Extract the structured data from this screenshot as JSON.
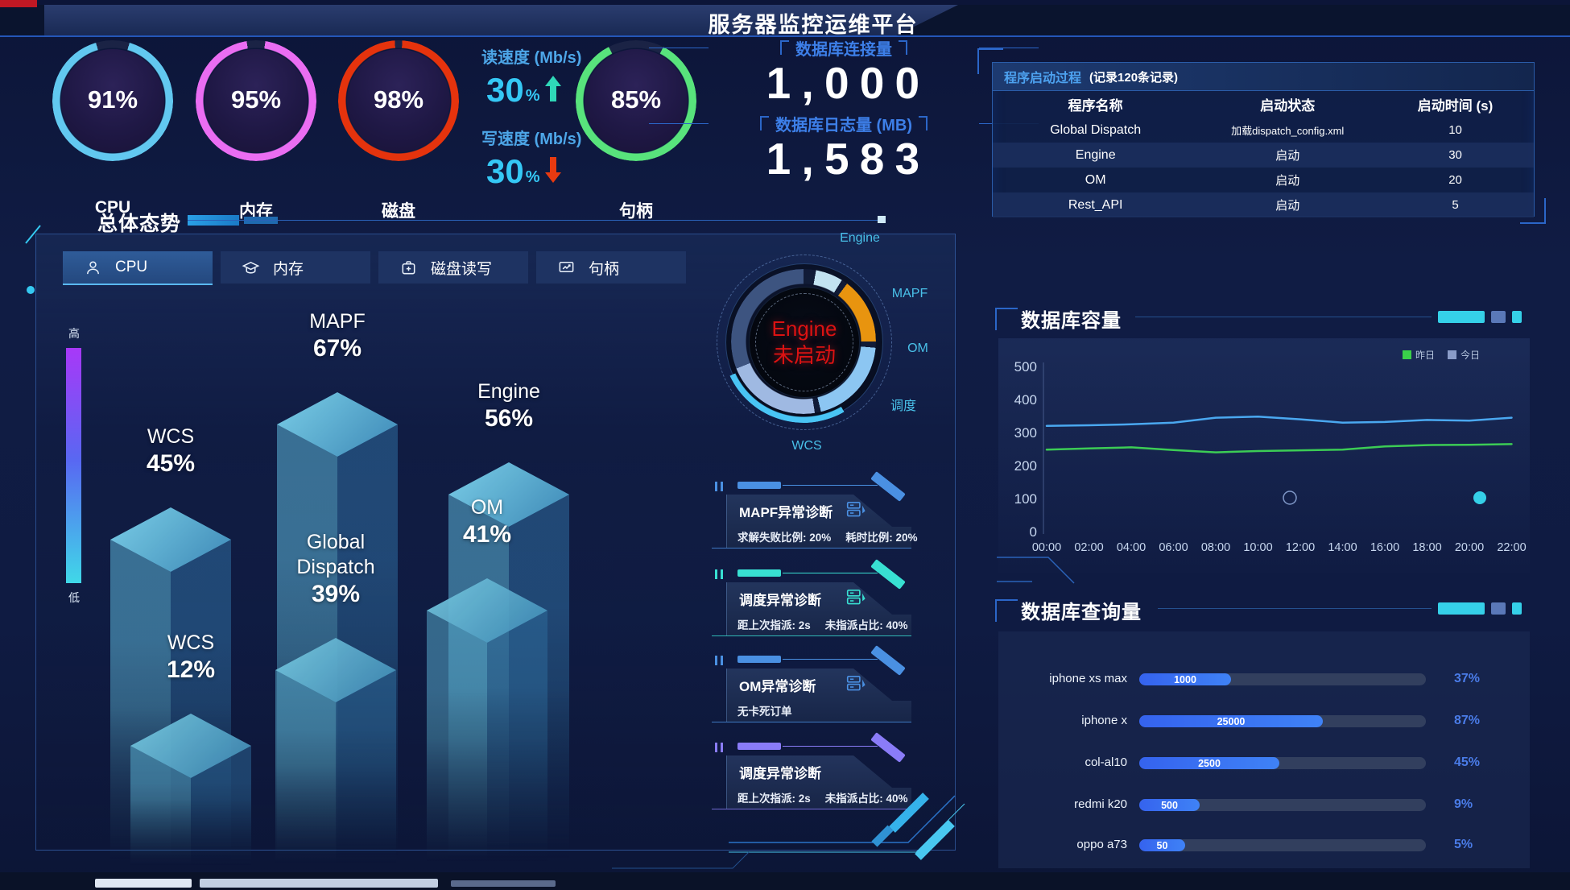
{
  "header": {
    "title": "服务器监控运维平台"
  },
  "gauges": [
    {
      "label": "CPU",
      "value": "91%",
      "pct": 91,
      "color": "#62c8f0"
    },
    {
      "label": "内存",
      "value": "95%",
      "pct": 95,
      "color": "#ea6df2"
    },
    {
      "label": "磁盘",
      "value": "98%",
      "pct": 98,
      "color": "#e5330d"
    },
    {
      "label": "句柄",
      "value": "85%",
      "pct": 85,
      "color": "#58e37c"
    }
  ],
  "io_speed": {
    "read_label": "读速度 (Mb/s)",
    "read_value": "30",
    "read_unit": "%",
    "write_label": "写速度 (Mb/s)",
    "write_value": "30",
    "write_unit": "%",
    "up_color": "#2fd8b8",
    "down_color": "#e83a10"
  },
  "db_stats": {
    "connections_label": "数据库连接量",
    "connections_value": "1,000",
    "log_label": "数据库日志量 (MB)",
    "log_value": "1,583"
  },
  "startup_table": {
    "title": "程序启动过程",
    "subtitle": "(记录120条记录)",
    "columns": [
      "程序名称",
      "启动状态",
      "启动时间 (s)"
    ],
    "rows": [
      [
        "Global Dispatch",
        "加载dispatch_config.xml",
        "10"
      ],
      [
        "Engine",
        "启动",
        "30"
      ],
      [
        "OM",
        "启动",
        "20"
      ],
      [
        "Rest_API",
        "启动",
        "5"
      ]
    ]
  },
  "overview": {
    "title": "总体态势",
    "tabs": [
      {
        "label": "CPU",
        "icon": "person-icon",
        "active": true
      },
      {
        "label": "内存",
        "icon": "cap-icon",
        "active": false
      },
      {
        "label": "磁盘读写",
        "icon": "disk-icon",
        "active": false
      },
      {
        "label": "句柄",
        "icon": "monitor-icon",
        "active": false
      }
    ],
    "scale_high": "高",
    "scale_low": "低"
  },
  "status_ring": {
    "center_line1": "Engine",
    "center_line2": "未启动",
    "labels": [
      "Engine",
      "MAPF",
      "OM",
      "调度",
      "WCS"
    ]
  },
  "diagnostics": [
    {
      "title": "MAPF异常诊断",
      "stats": [
        "求解失败比例: 20%",
        "耗时比例: 20%"
      ],
      "color": "#4a90e2",
      "icon": true
    },
    {
      "title": "调度异常诊断",
      "stats": [
        "距上次指派: 2s",
        "未指派占比: 40%"
      ],
      "color": "#38e0d2",
      "icon": true
    },
    {
      "title": "OM异常诊断",
      "stats": [
        "无卡死订单"
      ],
      "color": "#4a90e2",
      "icon": true
    },
    {
      "title": "调度异常诊断",
      "stats": [
        "距上次指派: 2s",
        "未指派占比: 40%"
      ],
      "color": "#8a7cf8",
      "icon": false
    }
  ],
  "db_capacity_panel": {
    "title": "数据库容量",
    "legend": [
      {
        "label": "昨日",
        "color": "#3ad04a"
      },
      {
        "label": "今日",
        "color": "#8a9cc8"
      }
    ]
  },
  "db_query_panel": {
    "title": "数据库查询量"
  },
  "chart_data": [
    {
      "name": "overview_bars",
      "type": "bar",
      "title": "总体态势 (CPU)",
      "categories": [
        "WCS",
        "MAPF",
        "Engine",
        "WCS",
        "Global Dispatch",
        "OM"
      ],
      "values": [
        45,
        67,
        56,
        12,
        39,
        41
      ],
      "unit": "%",
      "legend_high": "高",
      "legend_low": "低"
    },
    {
      "name": "db_capacity",
      "type": "line",
      "title": "数据库容量",
      "x": [
        "00:00",
        "02:00",
        "04:00",
        "06:00",
        "08:00",
        "10:00",
        "12:00",
        "14:00",
        "16:00",
        "18:00",
        "20:00",
        "22:00"
      ],
      "series": [
        {
          "name": "昨日",
          "color": "#3ccc55",
          "values": [
            248,
            252,
            255,
            247,
            240,
            244,
            246,
            248,
            258,
            262,
            263,
            265
          ]
        },
        {
          "name": "今日",
          "color": "#4aa8f0",
          "values": [
            320,
            322,
            325,
            330,
            345,
            348,
            340,
            330,
            332,
            338,
            336,
            345
          ]
        }
      ],
      "ylim": [
        0,
        500
      ],
      "yticks": [
        0,
        100,
        200,
        300,
        400,
        500
      ],
      "legend_position": "top-right",
      "grid": false
    },
    {
      "name": "db_queries",
      "type": "bar",
      "title": "数据库查询量",
      "categories": [
        "iphone xs max",
        "iphone x",
        "col-al10",
        "redmi k20",
        "oppo a73"
      ],
      "bar_value_labels": [
        "1000",
        "25000",
        "2500",
        "500",
        "50"
      ],
      "bar_fill_pct": [
        32,
        64,
        49,
        21,
        16
      ],
      "percent_labels": [
        "37%",
        "87%",
        "45%",
        "9%",
        "5%"
      ]
    }
  ]
}
